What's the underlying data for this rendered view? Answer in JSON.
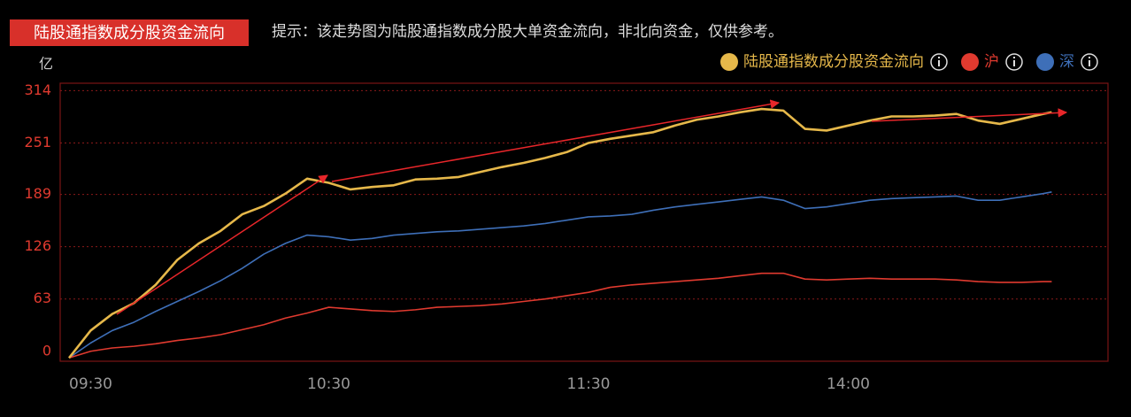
{
  "chart_data": {
    "type": "line",
    "title": "陆股通指数成分股资金流向",
    "subtitle": "提示：该走势图为陆股通指数成分股大单资金流向，非北向资金，仅供参考。",
    "y_label": "亿",
    "legend": "top-right",
    "grid": true,
    "x": [
      0,
      5,
      10,
      15,
      20,
      25,
      30,
      35,
      40,
      45,
      50,
      55,
      60,
      65,
      70,
      75,
      80,
      85,
      90,
      95,
      100,
      105,
      110,
      115,
      120,
      125,
      130,
      135,
      140,
      145,
      150,
      155,
      160,
      165,
      170,
      175,
      180,
      185,
      190,
      195,
      200,
      205,
      210,
      215,
      220,
      225,
      227
    ],
    "xlim": [
      0,
      240
    ],
    "xticks": [
      {
        "value": 0,
        "label": "09:30"
      },
      {
        "value": 60,
        "label": "10:30"
      },
      {
        "value": 120,
        "label": "11:30"
      },
      {
        "value": 180,
        "label": "14:00"
      }
    ],
    "ylim": [
      -12,
      323
    ],
    "yticks": [
      0,
      63,
      126,
      189,
      251,
      314
    ],
    "series": [
      {
        "name": "陆股通指数成分股资金流向",
        "color": "#e6b84a",
        "values": [
          -8,
          25,
          45,
          58,
          80,
          110,
          130,
          145,
          165,
          175,
          190,
          208,
          203,
          195,
          198,
          200,
          207,
          208,
          210,
          216,
          222,
          227,
          233,
          240,
          251,
          256,
          260,
          264,
          272,
          279,
          283,
          288,
          292,
          290,
          268,
          266,
          272,
          278,
          283,
          283,
          284,
          286,
          278,
          274,
          280,
          286,
          288
        ]
      },
      {
        "name": "沪",
        "color": "#e03a2f",
        "values": [
          -8,
          0,
          4,
          6,
          9,
          13,
          16,
          20,
          26,
          32,
          40,
          46,
          53,
          51,
          49,
          48,
          50,
          53,
          54,
          55,
          57,
          60,
          63,
          67,
          71,
          77,
          80,
          82,
          84,
          86,
          88,
          91,
          94,
          94,
          87,
          86,
          87,
          88,
          87,
          87,
          87,
          86,
          84,
          83,
          83,
          84,
          84
        ]
      },
      {
        "name": "深",
        "color": "#3e6fb8",
        "values": [
          -8,
          10,
          25,
          35,
          48,
          60,
          72,
          85,
          100,
          117,
          130,
          140,
          138,
          134,
          136,
          140,
          142,
          144,
          145,
          147,
          149,
          151,
          154,
          158,
          162,
          163,
          165,
          170,
          174,
          177,
          180,
          183,
          186,
          182,
          172,
          174,
          178,
          182,
          184,
          185,
          186,
          187,
          182,
          182,
          186,
          190,
          192
        ]
      }
    ]
  }
}
